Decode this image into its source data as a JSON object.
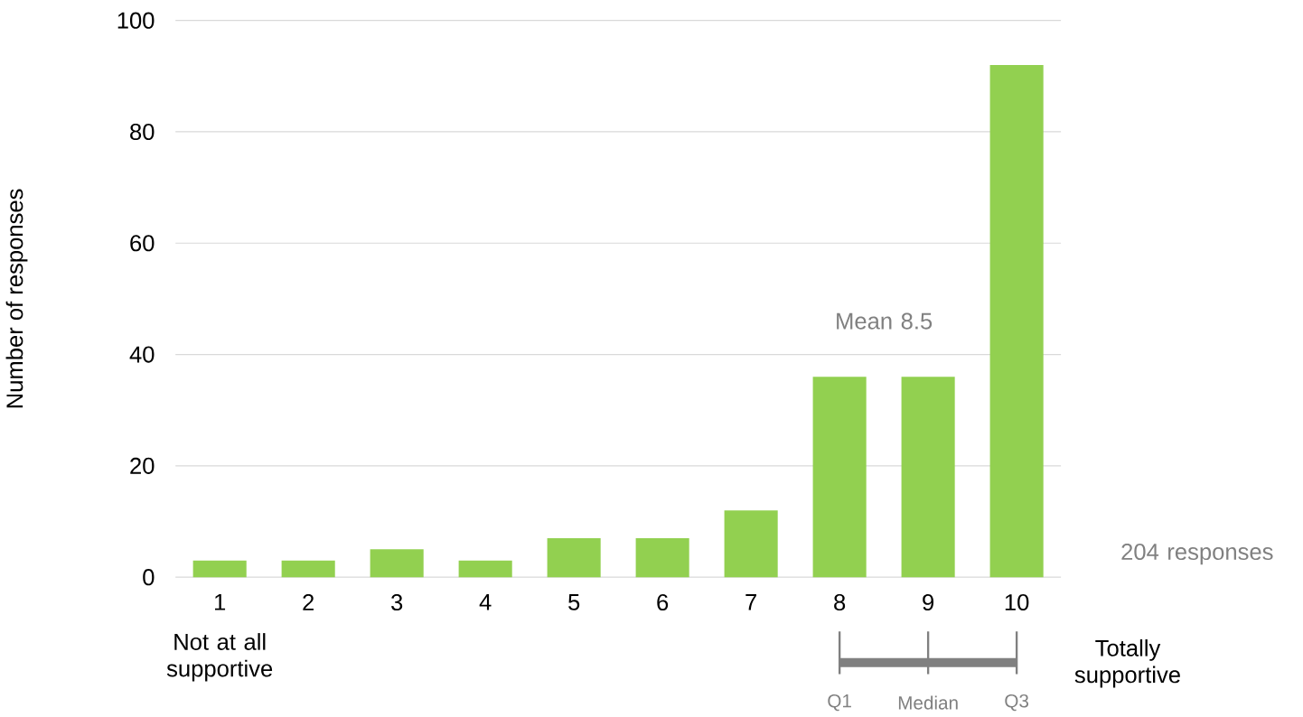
{
  "chart_data": {
    "type": "bar",
    "ylabel": "Number of responses",
    "categories": [
      "1",
      "2",
      "3",
      "4",
      "5",
      "6",
      "7",
      "8",
      "9",
      "10"
    ],
    "values": [
      3,
      3,
      5,
      3,
      7,
      7,
      12,
      36,
      36,
      92
    ],
    "color": "#92d050",
    "ylim": [
      0,
      100
    ],
    "yticks": [
      0,
      20,
      40,
      60,
      80,
      100
    ],
    "grid": "y",
    "annotations": [
      "Mean 8.5",
      "204 responses",
      "Not at all supportive",
      "Totally supportive",
      {
        "text": "Q1",
        "x": "8"
      },
      {
        "text": "Median",
        "x": "9"
      },
      {
        "text": "Q3",
        "x": "10"
      }
    ]
  }
}
